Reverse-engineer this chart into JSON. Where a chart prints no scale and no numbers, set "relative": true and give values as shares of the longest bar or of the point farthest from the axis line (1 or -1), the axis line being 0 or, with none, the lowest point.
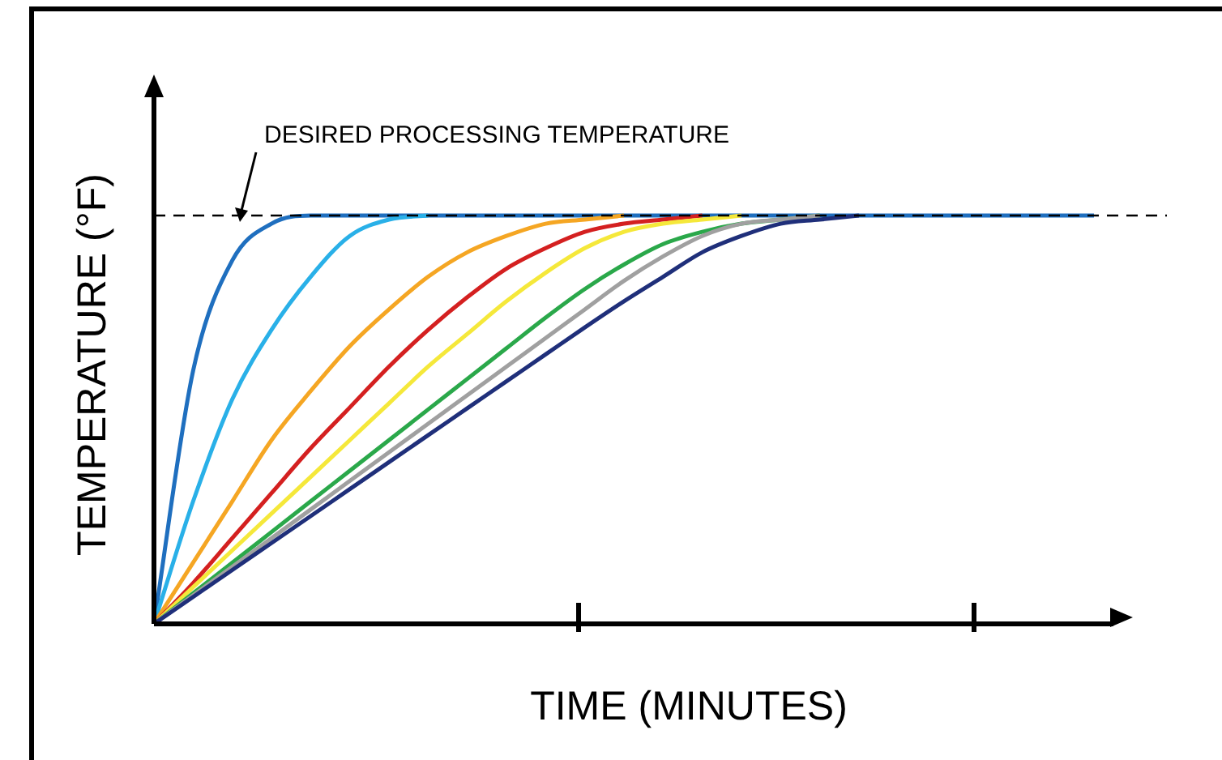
{
  "chart_data": {
    "type": "line",
    "relative": true,
    "xlabel": "TIME (MINUTES)",
    "ylabel": "TEMPERATURE (°F)",
    "annotations": [
      "DESIRED PROCESSING TEMPERATURE"
    ],
    "legend": false,
    "marker": "none",
    "ref_lines": [
      {
        "axis": "y",
        "value": 1,
        "color": "#000000",
        "line_style": "dashed"
      }
    ],
    "categories": [
      null,
      null,
      null,
      null,
      null,
      null,
      null,
      null,
      null,
      null,
      null,
      null,
      null,
      null,
      null,
      null,
      null,
      null,
      null,
      null,
      null,
      null,
      null,
      null,
      null
    ],
    "series": [
      {
        "color": "#1f6fbf",
        "values": [
          0,
          0.62,
          0.89,
          0.98,
          1,
          1,
          1,
          1,
          1,
          1,
          1,
          1,
          1,
          1,
          1,
          1,
          1,
          1,
          1,
          1,
          1,
          1,
          1,
          1,
          1
        ]
      },
      {
        "color": "#29b0e8",
        "values": [
          0,
          0.3,
          0.55,
          0.72,
          0.85,
          0.95,
          0.99,
          1,
          null,
          null,
          null,
          null,
          null,
          null,
          null,
          null,
          null,
          null,
          null,
          null,
          null,
          null,
          null,
          null,
          null
        ]
      },
      {
        "color": "#f5a623",
        "values": [
          0,
          0.15,
          0.3,
          0.45,
          0.57,
          0.68,
          0.77,
          0.85,
          0.91,
          0.95,
          0.98,
          0.99,
          1,
          null,
          null,
          null,
          null,
          null,
          null,
          null,
          null,
          null,
          null,
          null,
          null
        ]
      },
      {
        "color": "#d42020",
        "values": [
          0,
          0.1,
          0.21,
          0.32,
          0.43,
          0.53,
          0.63,
          0.72,
          0.8,
          0.87,
          0.92,
          0.96,
          0.98,
          0.99,
          1,
          null,
          null,
          null,
          null,
          null,
          null,
          null,
          null,
          null,
          null
        ]
      },
      {
        "color": "#f5e83a",
        "values": [
          0,
          0.09,
          0.18,
          0.27,
          0.36,
          0.45,
          0.54,
          0.63,
          0.71,
          0.79,
          0.86,
          0.92,
          0.96,
          0.98,
          0.99,
          1,
          null,
          null,
          null,
          null,
          null,
          null,
          null,
          null,
          null
        ]
      },
      {
        "color": "#2aa84a",
        "values": [
          0,
          0.075,
          0.15,
          0.225,
          0.3,
          0.375,
          0.45,
          0.525,
          0.6,
          0.675,
          0.75,
          0.82,
          0.88,
          0.93,
          0.96,
          0.98,
          0.99,
          1,
          null,
          null,
          null,
          null,
          null,
          null,
          null
        ]
      },
      {
        "color": "#a0a0a0",
        "values": [
          0,
          0.07,
          0.14,
          0.21,
          0.28,
          0.35,
          0.42,
          0.49,
          0.56,
          0.63,
          0.7,
          0.77,
          0.84,
          0.9,
          0.95,
          0.98,
          0.99,
          1,
          null,
          null,
          null,
          null,
          null,
          null,
          null
        ]
      },
      {
        "color": "#1f2f7a",
        "values": [
          0,
          0.066,
          0.132,
          0.198,
          0.264,
          0.33,
          0.396,
          0.462,
          0.528,
          0.594,
          0.66,
          0.726,
          0.79,
          0.85,
          0.91,
          0.95,
          0.98,
          0.99,
          1,
          null,
          null,
          null,
          null,
          null,
          null
        ]
      }
    ]
  }
}
